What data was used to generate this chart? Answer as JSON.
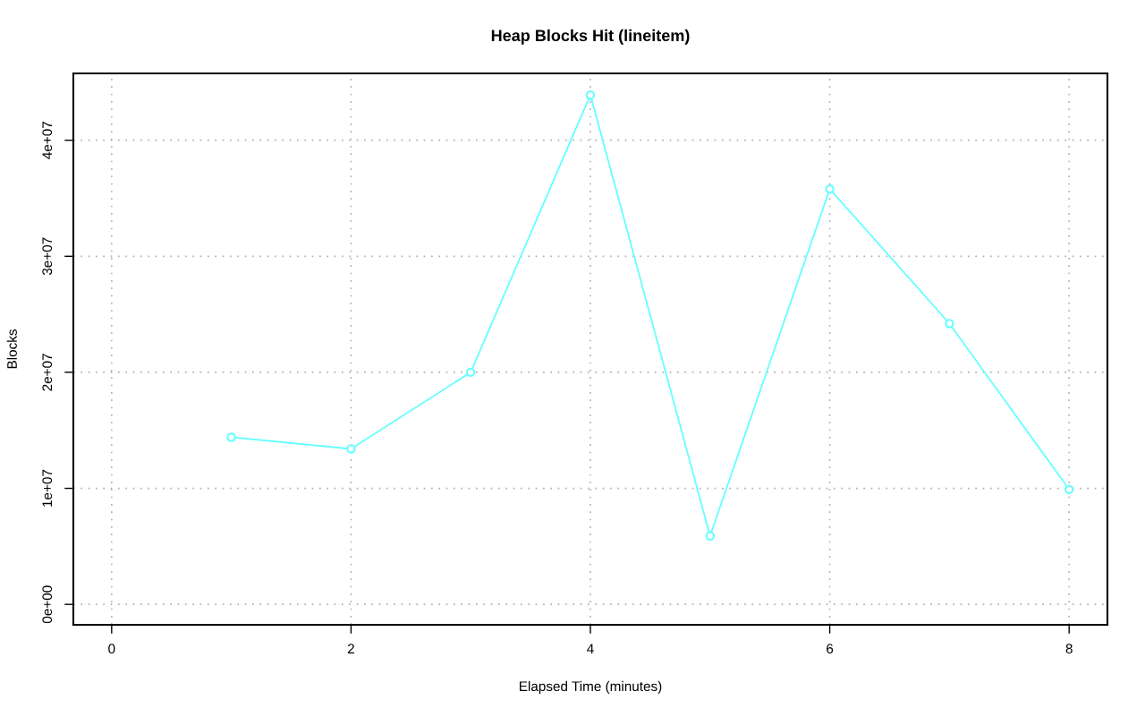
{
  "chart_data": {
    "type": "line",
    "title": "Heap Blocks Hit (lineitem)",
    "xlabel": "Elapsed Time (minutes)",
    "ylabel": "Blocks",
    "x": [
      1,
      2,
      3,
      4,
      5,
      6,
      7,
      8
    ],
    "series": [
      {
        "color": "#66ffff",
        "values": [
          14400000,
          13400000,
          20000000,
          43900000,
          5900000,
          35800000,
          24200000,
          9900000
        ]
      }
    ],
    "xlim": [
      -0.32,
      8.32
    ],
    "xticks": [
      0,
      2,
      4,
      6,
      8
    ],
    "ylim": [
      -1760000,
      45760000
    ],
    "yticks": [
      {
        "value": 0,
        "label": "0e+00"
      },
      {
        "value": 10000000,
        "label": "1e+07"
      },
      {
        "value": 20000000,
        "label": "2e+07"
      },
      {
        "value": 30000000,
        "label": "3e+07"
      },
      {
        "value": 40000000,
        "label": "4e+07"
      }
    ],
    "grid": true,
    "marker": "circle",
    "line_style": "solid"
  }
}
